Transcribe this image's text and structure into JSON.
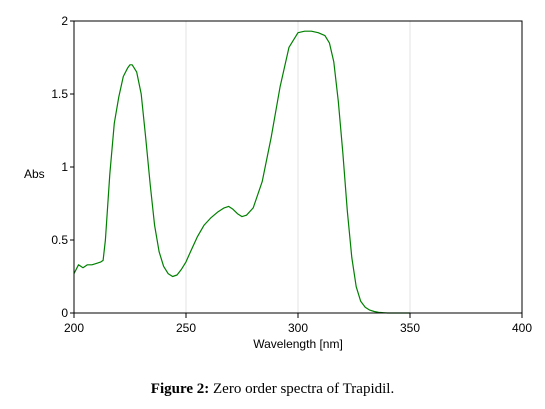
{
  "caption": {
    "label": "Figure 2:",
    "text": "Zero order spectra of Trapidil."
  },
  "chart_data": {
    "type": "line",
    "xlabel": "Wavelength [nm]",
    "ylabel": "Abs",
    "xlim": [
      200,
      400
    ],
    "ylim": [
      0,
      2
    ],
    "xticks": [
      200,
      250,
      300,
      350,
      400
    ],
    "yticks": [
      0,
      0.5,
      1,
      1.5,
      2
    ],
    "xtick_labels": [
      "200",
      "250",
      "300",
      "350",
      "400"
    ],
    "ytick_labels": [
      "0",
      "0.5",
      "1",
      "1.5",
      "2"
    ],
    "grid": "vertical",
    "series": [
      {
        "color": "#008000",
        "x": [
          200,
          202,
          204,
          206,
          208,
          210,
          212,
          213,
          214,
          216,
          218,
          220,
          222,
          224,
          225,
          226,
          228,
          230,
          232,
          234,
          236,
          238,
          240,
          242,
          244,
          246,
          248,
          250,
          252,
          255,
          258,
          261,
          264,
          267,
          269,
          271,
          273,
          275,
          277,
          280,
          284,
          288,
          292,
          296,
          300,
          303,
          306,
          309,
          312,
          314,
          316,
          318,
          320,
          322,
          324,
          326,
          328,
          330,
          332,
          334,
          336,
          338,
          340,
          345,
          350
        ],
        "y": [
          0.27,
          0.33,
          0.31,
          0.33,
          0.33,
          0.34,
          0.35,
          0.36,
          0.5,
          0.95,
          1.3,
          1.48,
          1.62,
          1.68,
          1.7,
          1.7,
          1.65,
          1.5,
          1.2,
          0.88,
          0.6,
          0.42,
          0.32,
          0.27,
          0.25,
          0.26,
          0.3,
          0.35,
          0.42,
          0.52,
          0.6,
          0.65,
          0.69,
          0.72,
          0.73,
          0.71,
          0.68,
          0.66,
          0.67,
          0.72,
          0.9,
          1.2,
          1.55,
          1.82,
          1.92,
          1.93,
          1.93,
          1.92,
          1.9,
          1.85,
          1.72,
          1.45,
          1.1,
          0.7,
          0.38,
          0.18,
          0.08,
          0.04,
          0.02,
          0.01,
          0.005,
          0.002,
          0.0,
          0.0,
          0.0
        ]
      }
    ]
  }
}
